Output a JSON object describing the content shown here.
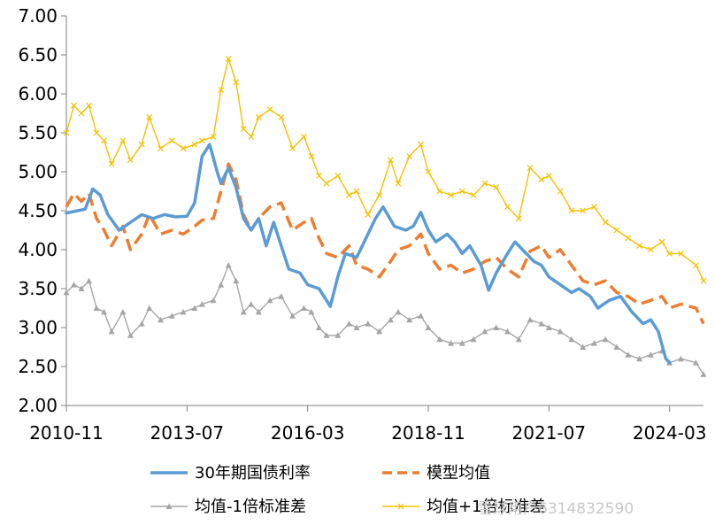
{
  "chart_data": {
    "type": "line",
    "title": "",
    "xlabel": "",
    "ylabel": "",
    "ylim": [
      2.0,
      7.0
    ],
    "y_ticks": [
      "2.00",
      "2.50",
      "3.00",
      "3.50",
      "4.00",
      "4.50",
      "5.00",
      "5.50",
      "6.00",
      "6.50",
      "7.00"
    ],
    "x_ticks": [
      "2010-11",
      "2013-07",
      "2016-03",
      "2018-11",
      "2021-07",
      "2024-03"
    ],
    "x_range": [
      "2010-11",
      "2024-12"
    ],
    "grid": false,
    "legend_position": "bottom",
    "series": [
      {
        "name": "30年期国债利率",
        "color": "#5b9bd5",
        "style": "solid",
        "marker": "none",
        "points": [
          [
            "2010-11",
            4.47
          ],
          [
            "2011-02",
            4.5
          ],
          [
            "2011-04",
            4.52
          ],
          [
            "2011-06",
            4.78
          ],
          [
            "2011-08",
            4.7
          ],
          [
            "2011-10",
            4.45
          ],
          [
            "2012-01",
            4.25
          ],
          [
            "2012-04",
            4.35
          ],
          [
            "2012-07",
            4.45
          ],
          [
            "2012-10",
            4.4
          ],
          [
            "2013-01",
            4.45
          ],
          [
            "2013-04",
            4.42
          ],
          [
            "2013-07",
            4.43
          ],
          [
            "2013-09",
            4.6
          ],
          [
            "2013-11",
            5.2
          ],
          [
            "2014-01",
            5.35
          ],
          [
            "2014-03",
            5.0
          ],
          [
            "2014-04",
            4.85
          ],
          [
            "2014-06",
            5.05
          ],
          [
            "2014-08",
            4.8
          ],
          [
            "2014-10",
            4.4
          ],
          [
            "2014-12",
            4.25
          ],
          [
            "2015-02",
            4.4
          ],
          [
            "2015-04",
            4.05
          ],
          [
            "2015-06",
            4.35
          ],
          [
            "2015-08",
            4.05
          ],
          [
            "2015-10",
            3.75
          ],
          [
            "2016-01",
            3.7
          ],
          [
            "2016-03",
            3.55
          ],
          [
            "2016-06",
            3.5
          ],
          [
            "2016-08",
            3.35
          ],
          [
            "2016-09",
            3.27
          ],
          [
            "2016-11",
            3.65
          ],
          [
            "2017-01",
            3.95
          ],
          [
            "2017-04",
            3.9
          ],
          [
            "2017-06",
            4.1
          ],
          [
            "2017-09",
            4.4
          ],
          [
            "2017-11",
            4.55
          ],
          [
            "2018-02",
            4.3
          ],
          [
            "2018-05",
            4.25
          ],
          [
            "2018-07",
            4.3
          ],
          [
            "2018-09",
            4.48
          ],
          [
            "2018-11",
            4.25
          ],
          [
            "2019-01",
            4.1
          ],
          [
            "2019-04",
            4.2
          ],
          [
            "2019-06",
            4.1
          ],
          [
            "2019-08",
            3.95
          ],
          [
            "2019-10",
            4.05
          ],
          [
            "2020-01",
            3.8
          ],
          [
            "2020-03",
            3.48
          ],
          [
            "2020-05",
            3.7
          ],
          [
            "2020-08",
            3.95
          ],
          [
            "2020-10",
            4.1
          ],
          [
            "2020-12",
            4.0
          ],
          [
            "2021-03",
            3.85
          ],
          [
            "2021-05",
            3.8
          ],
          [
            "2021-07",
            3.65
          ],
          [
            "2021-10",
            3.55
          ],
          [
            "2022-01",
            3.45
          ],
          [
            "2022-03",
            3.5
          ],
          [
            "2022-06",
            3.4
          ],
          [
            "2022-08",
            3.25
          ],
          [
            "2022-11",
            3.35
          ],
          [
            "2023-02",
            3.4
          ],
          [
            "2023-05",
            3.2
          ],
          [
            "2023-08",
            3.05
          ],
          [
            "2023-10",
            3.1
          ],
          [
            "2023-12",
            2.95
          ],
          [
            "2024-02",
            2.6
          ],
          [
            "2024-03",
            2.55
          ]
        ]
      },
      {
        "name": "模型均值",
        "color": "#ed7d31",
        "style": "dashed",
        "marker": "none",
        "points": [
          [
            "2010-11",
            4.55
          ],
          [
            "2011-01",
            4.72
          ],
          [
            "2011-03",
            4.62
          ],
          [
            "2011-05",
            4.72
          ],
          [
            "2011-07",
            4.4
          ],
          [
            "2011-09",
            4.25
          ],
          [
            "2011-11",
            4.05
          ],
          [
            "2012-02",
            4.3
          ],
          [
            "2012-04",
            4.0
          ],
          [
            "2012-07",
            4.2
          ],
          [
            "2012-09",
            4.45
          ],
          [
            "2012-12",
            4.2
          ],
          [
            "2013-03",
            4.25
          ],
          [
            "2013-06",
            4.2
          ],
          [
            "2013-09",
            4.3
          ],
          [
            "2013-11",
            4.38
          ],
          [
            "2014-02",
            4.4
          ],
          [
            "2014-04",
            4.75
          ],
          [
            "2014-06",
            5.1
          ],
          [
            "2014-08",
            4.9
          ],
          [
            "2014-10",
            4.45
          ],
          [
            "2014-12",
            4.25
          ],
          [
            "2015-02",
            4.4
          ],
          [
            "2015-05",
            4.55
          ],
          [
            "2015-08",
            4.6
          ],
          [
            "2015-11",
            4.25
          ],
          [
            "2016-02",
            4.35
          ],
          [
            "2016-04",
            4.4
          ],
          [
            "2016-06",
            4.15
          ],
          [
            "2016-08",
            3.95
          ],
          [
            "2016-11",
            3.9
          ],
          [
            "2017-02",
            4.05
          ],
          [
            "2017-04",
            3.8
          ],
          [
            "2017-07",
            3.75
          ],
          [
            "2017-10",
            3.65
          ],
          [
            "2018-01",
            3.85
          ],
          [
            "2018-03",
            4.0
          ],
          [
            "2018-06",
            4.05
          ],
          [
            "2018-09",
            4.2
          ],
          [
            "2018-11",
            3.95
          ],
          [
            "2019-02",
            3.75
          ],
          [
            "2019-05",
            3.8
          ],
          [
            "2019-08",
            3.7
          ],
          [
            "2019-11",
            3.75
          ],
          [
            "2020-02",
            3.85
          ],
          [
            "2020-05",
            3.9
          ],
          [
            "2020-08",
            3.75
          ],
          [
            "2020-11",
            3.65
          ],
          [
            "2021-02",
            3.98
          ],
          [
            "2021-05",
            4.05
          ],
          [
            "2021-07",
            3.9
          ],
          [
            "2021-10",
            4.0
          ],
          [
            "2022-01",
            3.8
          ],
          [
            "2022-04",
            3.6
          ],
          [
            "2022-07",
            3.55
          ],
          [
            "2022-10",
            3.6
          ],
          [
            "2023-01",
            3.45
          ],
          [
            "2023-04",
            3.4
          ],
          [
            "2023-07",
            3.3
          ],
          [
            "2023-10",
            3.35
          ],
          [
            "2024-01",
            3.4
          ],
          [
            "2024-03",
            3.25
          ],
          [
            "2024-06",
            3.3
          ],
          [
            "2024-10",
            3.25
          ],
          [
            "2024-12",
            3.05
          ]
        ]
      },
      {
        "name": "均值-1倍标准差",
        "color": "#a5a5a5",
        "style": "solid",
        "marker": "triangle",
        "points": [
          [
            "2010-11",
            3.45
          ],
          [
            "2011-01",
            3.55
          ],
          [
            "2011-03",
            3.5
          ],
          [
            "2011-05",
            3.6
          ],
          [
            "2011-07",
            3.25
          ],
          [
            "2011-09",
            3.2
          ],
          [
            "2011-11",
            2.95
          ],
          [
            "2012-02",
            3.2
          ],
          [
            "2012-04",
            2.9
          ],
          [
            "2012-07",
            3.05
          ],
          [
            "2012-09",
            3.25
          ],
          [
            "2012-12",
            3.1
          ],
          [
            "2013-03",
            3.15
          ],
          [
            "2013-06",
            3.2
          ],
          [
            "2013-09",
            3.25
          ],
          [
            "2013-11",
            3.3
          ],
          [
            "2014-02",
            3.35
          ],
          [
            "2014-04",
            3.55
          ],
          [
            "2014-06",
            3.8
          ],
          [
            "2014-08",
            3.6
          ],
          [
            "2014-10",
            3.2
          ],
          [
            "2014-12",
            3.3
          ],
          [
            "2015-02",
            3.2
          ],
          [
            "2015-05",
            3.35
          ],
          [
            "2015-08",
            3.4
          ],
          [
            "2015-11",
            3.15
          ],
          [
            "2016-02",
            3.25
          ],
          [
            "2016-04",
            3.2
          ],
          [
            "2016-06",
            3.0
          ],
          [
            "2016-08",
            2.9
          ],
          [
            "2016-11",
            2.9
          ],
          [
            "2017-02",
            3.05
          ],
          [
            "2017-04",
            3.0
          ],
          [
            "2017-07",
            3.05
          ],
          [
            "2017-10",
            2.95
          ],
          [
            "2018-01",
            3.1
          ],
          [
            "2018-03",
            3.2
          ],
          [
            "2018-06",
            3.1
          ],
          [
            "2018-09",
            3.15
          ],
          [
            "2018-11",
            3.0
          ],
          [
            "2019-02",
            2.85
          ],
          [
            "2019-05",
            2.8
          ],
          [
            "2019-08",
            2.8
          ],
          [
            "2019-11",
            2.85
          ],
          [
            "2020-02",
            2.95
          ],
          [
            "2020-05",
            3.0
          ],
          [
            "2020-08",
            2.95
          ],
          [
            "2020-11",
            2.85
          ],
          [
            "2021-02",
            3.1
          ],
          [
            "2021-05",
            3.05
          ],
          [
            "2021-07",
            3.0
          ],
          [
            "2021-10",
            2.95
          ],
          [
            "2022-01",
            2.85
          ],
          [
            "2022-04",
            2.75
          ],
          [
            "2022-07",
            2.8
          ],
          [
            "2022-10",
            2.85
          ],
          [
            "2023-01",
            2.75
          ],
          [
            "2023-04",
            2.65
          ],
          [
            "2023-07",
            2.6
          ],
          [
            "2023-10",
            2.65
          ],
          [
            "2024-01",
            2.7
          ],
          [
            "2024-03",
            2.55
          ],
          [
            "2024-06",
            2.6
          ],
          [
            "2024-10",
            2.55
          ],
          [
            "2024-12",
            2.4
          ]
        ]
      },
      {
        "name": "均值+1倍标准差",
        "color": "#f5c000",
        "style": "solid",
        "marker": "x",
        "points": [
          [
            "2010-11",
            5.5
          ],
          [
            "2011-01",
            5.85
          ],
          [
            "2011-03",
            5.75
          ],
          [
            "2011-05",
            5.85
          ],
          [
            "2011-07",
            5.5
          ],
          [
            "2011-09",
            5.4
          ],
          [
            "2011-11",
            5.1
          ],
          [
            "2012-02",
            5.4
          ],
          [
            "2012-04",
            5.15
          ],
          [
            "2012-07",
            5.35
          ],
          [
            "2012-09",
            5.7
          ],
          [
            "2012-12",
            5.3
          ],
          [
            "2013-03",
            5.4
          ],
          [
            "2013-06",
            5.3
          ],
          [
            "2013-09",
            5.35
          ],
          [
            "2013-11",
            5.4
          ],
          [
            "2014-02",
            5.45
          ],
          [
            "2014-04",
            6.05
          ],
          [
            "2014-06",
            6.45
          ],
          [
            "2014-08",
            6.15
          ],
          [
            "2014-10",
            5.55
          ],
          [
            "2014-12",
            5.45
          ],
          [
            "2015-02",
            5.7
          ],
          [
            "2015-05",
            5.8
          ],
          [
            "2015-08",
            5.7
          ],
          [
            "2015-11",
            5.3
          ],
          [
            "2016-02",
            5.45
          ],
          [
            "2016-04",
            5.2
          ],
          [
            "2016-06",
            4.95
          ],
          [
            "2016-08",
            4.85
          ],
          [
            "2016-11",
            4.95
          ],
          [
            "2017-02",
            4.7
          ],
          [
            "2017-04",
            4.75
          ],
          [
            "2017-07",
            4.45
          ],
          [
            "2017-10",
            4.7
          ],
          [
            "2018-01",
            5.15
          ],
          [
            "2018-03",
            4.85
          ],
          [
            "2018-06",
            5.2
          ],
          [
            "2018-09",
            5.35
          ],
          [
            "2018-11",
            5.0
          ],
          [
            "2019-02",
            4.75
          ],
          [
            "2019-05",
            4.7
          ],
          [
            "2019-08",
            4.75
          ],
          [
            "2019-11",
            4.7
          ],
          [
            "2020-02",
            4.85
          ],
          [
            "2020-05",
            4.8
          ],
          [
            "2020-08",
            4.55
          ],
          [
            "2020-11",
            4.4
          ],
          [
            "2021-02",
            5.05
          ],
          [
            "2021-05",
            4.9
          ],
          [
            "2021-07",
            4.95
          ],
          [
            "2021-10",
            4.75
          ],
          [
            "2022-01",
            4.5
          ],
          [
            "2022-04",
            4.5
          ],
          [
            "2022-07",
            4.55
          ],
          [
            "2022-10",
            4.35
          ],
          [
            "2023-01",
            4.25
          ],
          [
            "2023-04",
            4.15
          ],
          [
            "2023-07",
            4.05
          ],
          [
            "2023-10",
            4.0
          ],
          [
            "2024-01",
            4.1
          ],
          [
            "2024-03",
            3.95
          ],
          [
            "2024-06",
            3.95
          ],
          [
            "2024-10",
            3.8
          ],
          [
            "2024-12",
            3.6
          ]
        ]
      }
    ]
  },
  "watermark": "雪球用户6314832590"
}
